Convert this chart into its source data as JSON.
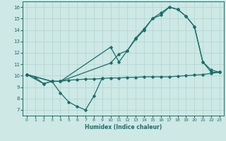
{
  "xlabel": "Humidex (Indice chaleur)",
  "bg_color": "#cde8e5",
  "line_color": "#1a6e6a",
  "grid_color": "#afd4d0",
  "xlim": [
    -0.5,
    23.5
  ],
  "ylim": [
    6.5,
    16.5
  ],
  "xticks": [
    0,
    1,
    2,
    3,
    4,
    5,
    6,
    7,
    8,
    9,
    10,
    11,
    12,
    13,
    14,
    15,
    16,
    17,
    18,
    19,
    20,
    21,
    22,
    23
  ],
  "yticks": [
    7,
    8,
    9,
    10,
    11,
    12,
    13,
    14,
    15,
    16
  ],
  "line1_x": [
    0,
    1,
    2,
    3,
    4,
    5,
    6,
    7,
    8,
    9,
    10,
    11,
    12,
    13,
    14,
    15,
    16,
    17,
    18,
    19,
    20,
    21,
    22,
    23
  ],
  "line1_y": [
    10.1,
    9.85,
    9.3,
    9.5,
    9.5,
    9.6,
    9.65,
    9.7,
    9.7,
    9.75,
    9.8,
    9.8,
    9.85,
    9.85,
    9.9,
    9.9,
    9.9,
    9.9,
    9.95,
    10.0,
    10.05,
    10.1,
    10.2,
    10.3
  ],
  "line2_x": [
    0,
    3,
    4,
    5,
    6,
    7,
    8,
    9
  ],
  "line2_y": [
    10.1,
    9.5,
    8.5,
    7.7,
    7.3,
    7.0,
    8.2,
    9.8
  ],
  "line3_x": [
    0,
    3,
    4,
    10,
    11,
    12,
    13,
    14,
    15,
    16,
    17,
    18,
    19,
    20,
    21,
    22,
    23
  ],
  "line3_y": [
    10.1,
    9.5,
    9.5,
    11.1,
    11.9,
    12.2,
    13.3,
    14.1,
    15.0,
    15.5,
    16.0,
    15.8,
    15.2,
    14.3,
    11.2,
    10.5,
    10.3
  ],
  "line4_x": [
    0,
    2,
    3,
    4,
    10,
    11,
    12,
    13,
    14,
    15,
    16,
    17,
    18,
    19,
    20,
    21,
    22,
    23
  ],
  "line4_y": [
    10.1,
    9.3,
    9.5,
    9.5,
    12.5,
    11.2,
    12.2,
    13.2,
    14.0,
    15.0,
    15.3,
    16.0,
    15.8,
    15.2,
    14.3,
    11.2,
    10.3,
    10.3
  ]
}
